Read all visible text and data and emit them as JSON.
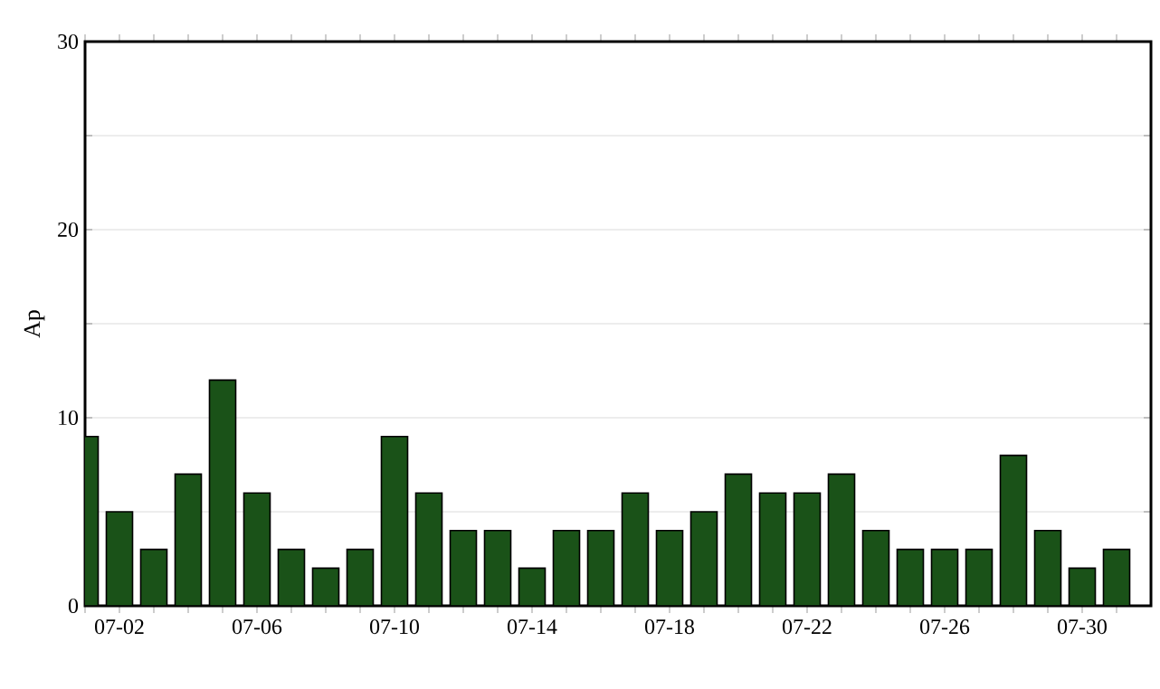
{
  "chart_data": {
    "type": "bar",
    "ylabel": "Ap",
    "categories": [
      null,
      "07-02",
      null,
      null,
      null,
      "07-06",
      null,
      null,
      null,
      "07-10",
      null,
      null,
      null,
      "07-14",
      null,
      null,
      null,
      "07-18",
      null,
      null,
      null,
      "07-22",
      null,
      null,
      null,
      "07-26",
      null,
      null,
      null,
      "07-30",
      null
    ],
    "values": [
      9,
      5,
      3,
      7,
      12,
      6,
      3,
      2,
      3,
      9,
      6,
      4,
      4,
      2,
      4,
      4,
      6,
      4,
      5,
      7,
      6,
      6,
      7,
      4,
      3,
      3,
      3,
      8,
      4,
      2,
      3
    ],
    "color": "#1a5218",
    "ylim": [
      0,
      30
    ],
    "yticks": [
      0,
      {
        "value": 5,
        "label": null
      },
      10,
      {
        "value": 15,
        "label": null
      },
      20,
      {
        "value": 25,
        "label": null
      },
      30
    ],
    "grid": "y"
  }
}
